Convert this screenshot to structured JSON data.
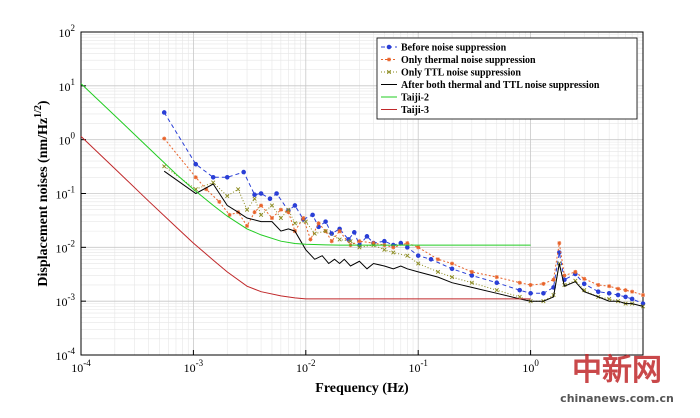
{
  "chart_data": {
    "type": "line",
    "x_scale": "log",
    "y_scale": "log",
    "xlim": [
      0.0001,
      10
    ],
    "ylim": [
      0.0001,
      100
    ],
    "grid": true,
    "legend_placement": "top-right",
    "xlabel": "Frequency (Hz)",
    "ylabel": {
      "main": "Displacement noises (nm/Hz",
      "sup": "1/2",
      "tail": ")"
    },
    "x_ticks": [
      {
        "e": -4
      },
      {
        "e": -3
      },
      {
        "e": -2
      },
      {
        "e": -1
      },
      {
        "e": 0
      }
    ],
    "y_ticks": [
      {
        "e": -4
      },
      {
        "e": -3
      },
      {
        "e": -2
      },
      {
        "e": -1
      },
      {
        "e": 0
      },
      {
        "e": 1
      },
      {
        "e": 2
      }
    ],
    "series": [
      {
        "name": "Before noise suppression",
        "color": "#2a3fd6",
        "dash": "4,3",
        "marker": "circle",
        "x": [
          0.00055,
          0.00105,
          0.0015,
          0.002,
          0.0028,
          0.0035,
          0.004,
          0.0048,
          0.0055,
          0.007,
          0.008,
          0.0095,
          0.0115,
          0.013,
          0.015,
          0.017,
          0.02,
          0.024,
          0.027,
          0.03,
          0.035,
          0.04,
          0.05,
          0.06,
          0.07,
          0.08,
          0.1,
          0.13,
          0.2,
          0.3,
          0.5,
          0.8,
          1.0,
          1.3,
          1.6,
          1.8,
          2.0,
          2.5,
          3.0,
          4.0,
          5.0,
          6.0,
          7.0,
          8.0,
          10.0
        ],
        "y": [
          3.2,
          0.35,
          0.2,
          0.2,
          0.25,
          0.095,
          0.1,
          0.08,
          0.1,
          0.048,
          0.06,
          0.033,
          0.04,
          0.024,
          0.03,
          0.018,
          0.022,
          0.014,
          0.019,
          0.011,
          0.016,
          0.012,
          0.013,
          0.011,
          0.012,
          0.01,
          0.007,
          0.006,
          0.004,
          0.003,
          0.0022,
          0.0016,
          0.0014,
          0.0014,
          0.0018,
          0.008,
          0.0025,
          0.0032,
          0.0021,
          0.0015,
          0.0014,
          0.0013,
          0.0012,
          0.0011,
          0.0009
        ]
      },
      {
        "name": "Only thermal noise suppression",
        "color": "#e8632a",
        "dash": "2,2",
        "marker": "star",
        "x": [
          0.00055,
          0.00105,
          0.0013,
          0.0017,
          0.0021,
          0.0025,
          0.003,
          0.0035,
          0.004,
          0.005,
          0.006,
          0.007,
          0.008,
          0.0095,
          0.011,
          0.013,
          0.015,
          0.017,
          0.02,
          0.025,
          0.03,
          0.04,
          0.05,
          0.06,
          0.08,
          0.1,
          0.15,
          0.2,
          0.3,
          0.5,
          0.8,
          1.0,
          1.3,
          1.6,
          1.8,
          2.0,
          2.5,
          3.0,
          4.0,
          5.0,
          6.0,
          7.0,
          8.0,
          10.0
        ],
        "y": [
          1.05,
          0.2,
          0.12,
          0.07,
          0.04,
          0.045,
          0.025,
          0.045,
          0.06,
          0.035,
          0.05,
          0.045,
          0.02,
          0.035,
          0.014,
          0.028,
          0.02,
          0.013,
          0.02,
          0.011,
          0.013,
          0.012,
          0.011,
          0.01,
          0.012,
          0.01,
          0.006,
          0.005,
          0.0035,
          0.0028,
          0.0022,
          0.002,
          0.0021,
          0.0025,
          0.012,
          0.003,
          0.0035,
          0.0026,
          0.002,
          0.0019,
          0.0017,
          0.0016,
          0.0015,
          0.0013
        ]
      },
      {
        "name": "Only TTL noise suppression",
        "color": "#8a8a1e",
        "dash": "1,2",
        "marker": "cross",
        "x": [
          0.00055,
          0.00105,
          0.0015,
          0.002,
          0.0025,
          0.003,
          0.0035,
          0.004,
          0.005,
          0.006,
          0.007,
          0.008,
          0.01,
          0.012,
          0.015,
          0.02,
          0.025,
          0.03,
          0.04,
          0.05,
          0.06,
          0.08,
          0.1,
          0.15,
          0.2,
          0.3,
          0.5,
          0.8,
          1.0,
          1.3,
          1.6,
          1.8,
          2.0,
          2.5,
          3.0,
          4.0,
          5.0,
          6.0,
          7.0,
          8.0,
          10.0
        ],
        "y": [
          0.32,
          0.12,
          0.16,
          0.09,
          0.12,
          0.05,
          0.08,
          0.04,
          0.06,
          0.035,
          0.05,
          0.028,
          0.03,
          0.018,
          0.02,
          0.014,
          0.013,
          0.01,
          0.011,
          0.009,
          0.008,
          0.007,
          0.005,
          0.0035,
          0.0028,
          0.0022,
          0.0016,
          0.0012,
          0.001,
          0.001,
          0.0013,
          0.005,
          0.002,
          0.0024,
          0.0016,
          0.0012,
          0.0011,
          0.001,
          0.0009,
          0.0009,
          0.0008
        ]
      },
      {
        "name": "After both thermal and TTL noise suppression",
        "color": "#000000",
        "dash": "",
        "marker": "none",
        "x": [
          0.00055,
          0.00105,
          0.0015,
          0.002,
          0.0025,
          0.003,
          0.004,
          0.005,
          0.006,
          0.007,
          0.008,
          0.01,
          0.012,
          0.014,
          0.016,
          0.018,
          0.02,
          0.022,
          0.025,
          0.03,
          0.035,
          0.04,
          0.05,
          0.06,
          0.07,
          0.08,
          0.1,
          0.15,
          0.2,
          0.3,
          0.5,
          0.8,
          1.0,
          1.3,
          1.6,
          1.8,
          2.0,
          2.5,
          3.0,
          4.0,
          5.0,
          6.0,
          7.0,
          8.0,
          10.0
        ],
        "y": [
          0.26,
          0.1,
          0.15,
          0.06,
          0.045,
          0.035,
          0.03,
          0.03,
          0.02,
          0.022,
          0.02,
          0.009,
          0.006,
          0.007,
          0.005,
          0.006,
          0.005,
          0.006,
          0.0045,
          0.0055,
          0.004,
          0.005,
          0.0045,
          0.004,
          0.0045,
          0.004,
          0.0035,
          0.0028,
          0.0022,
          0.0018,
          0.0014,
          0.0011,
          0.001,
          0.001,
          0.0012,
          0.005,
          0.0019,
          0.0023,
          0.0015,
          0.0012,
          0.001,
          0.001,
          0.0009,
          0.0009,
          0.0008
        ]
      },
      {
        "name": "Taiji-2",
        "color": "#22cc22",
        "dash": "",
        "marker": "none",
        "x": [
          0.0001,
          0.0002,
          0.0004,
          0.0007,
          0.001,
          0.0015,
          0.002,
          0.003,
          0.004,
          0.006,
          0.008,
          0.01,
          0.015,
          0.02,
          0.05,
          0.1,
          1.0
        ],
        "y": [
          11.0,
          2.8,
          0.7,
          0.23,
          0.12,
          0.06,
          0.038,
          0.022,
          0.017,
          0.013,
          0.0118,
          0.0114,
          0.0111,
          0.011,
          0.011,
          0.011,
          0.011
        ]
      },
      {
        "name": "Taiji-3",
        "color": "#c0282a",
        "dash": "",
        "marker": "none",
        "x": [
          0.0001,
          0.0002,
          0.0004,
          0.0007,
          0.001,
          0.0015,
          0.002,
          0.003,
          0.004,
          0.006,
          0.008,
          0.01,
          0.015,
          0.02,
          0.05,
          0.1,
          1.0
        ],
        "y": [
          1.15,
          0.29,
          0.072,
          0.024,
          0.012,
          0.0058,
          0.0035,
          0.0019,
          0.0015,
          0.00125,
          0.00115,
          0.0011,
          0.0011,
          0.0011,
          0.0011,
          0.0011,
          0.0011
        ]
      }
    ]
  },
  "watermark": {
    "logo": "中新网",
    "url": "chinanews.com.cn"
  }
}
